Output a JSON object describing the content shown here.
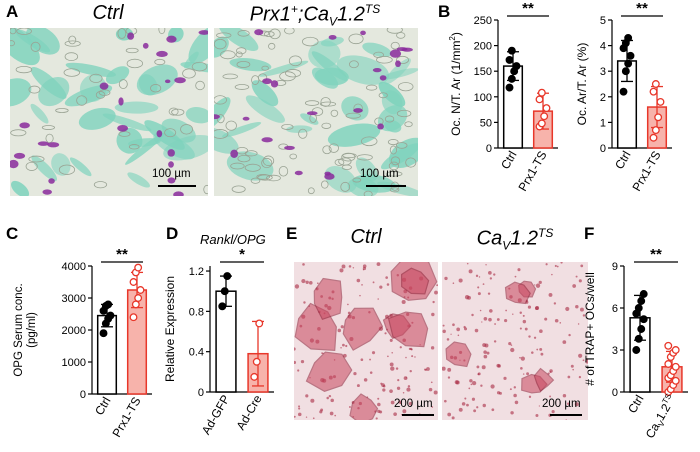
{
  "panels": {
    "A": {
      "letter": "A",
      "images": [
        {
          "title": "Ctrl",
          "scale_bar": "100 µm",
          "stain": "TRAP (purple) / fast green"
        },
        {
          "title_main": "Prx1",
          "title_sup": "+",
          "title_mid": ";Ca",
          "title_sub": "V",
          "title_end": "1.2",
          "title_sup2": "TS",
          "scale_bar": "100 µm"
        }
      ]
    },
    "B": {
      "letter": "B"
    },
    "C": {
      "letter": "C"
    },
    "D": {
      "letter": "D",
      "heading": "Rankl/OPG"
    },
    "E": {
      "letter": "E",
      "images": [
        {
          "title": "Ctrl",
          "scale_bar": "200 µm"
        },
        {
          "title_main": "Ca",
          "title_sub": "V",
          "title_end": "1.2",
          "title_sup": "TS",
          "scale_bar": "200 µm"
        }
      ]
    },
    "F": {
      "letter": "F"
    }
  },
  "colors": {
    "ctrl_fill": "#ffffff",
    "mutant_fill": "#f7b3ab",
    "mutant_edge": "#e8372a",
    "ctrl_edge": "#000000",
    "trap_purple": "#8a2a9c",
    "fast_green": "#7fd3bd",
    "osteoclast_red": "#c8475f"
  },
  "chart_data": [
    {
      "id": "B1",
      "type": "bar",
      "ylabel_main": "Oc. N/T. Ar (1/mm",
      "ylabel_sup": "2",
      "ylabel_end": ")",
      "categories": [
        "Ctrl",
        "Prx1-TS"
      ],
      "values": [
        160,
        72
      ],
      "errors": [
        28,
        35
      ],
      "points": [
        [
          118,
          135,
          150,
          160,
          172,
          190
        ],
        [
          42,
          48,
          62,
          78,
          95,
          108
        ]
      ],
      "ylim": [
        0,
        250
      ],
      "yticks": [
        0,
        50,
        100,
        150,
        200,
        250
      ],
      "significance": "**"
    },
    {
      "id": "B2",
      "type": "bar",
      "ylabel": "Oc. Ar/T. Ar (%)",
      "categories": [
        "Ctrl",
        "Prx1-TS"
      ],
      "values": [
        3.4,
        1.6
      ],
      "errors": [
        0.8,
        0.8
      ],
      "points": [
        [
          2.2,
          3.0,
          3.3,
          3.6,
          3.9,
          4.1,
          4.3
        ],
        [
          0.4,
          0.7,
          1.2,
          1.8,
          2.2,
          2.5
        ]
      ],
      "ylim": [
        0,
        5
      ],
      "yticks": [
        0,
        1,
        2,
        3,
        4,
        5
      ],
      "significance": "**"
    },
    {
      "id": "C",
      "type": "bar",
      "ylabel_lines": [
        "OPG Serum conc.",
        "(pg/ml)"
      ],
      "categories": [
        "Ctrl",
        "Prx1-TS"
      ],
      "values": [
        2450,
        3250
      ],
      "errors": [
        350,
        550
      ],
      "points": [
        [
          1900,
          2200,
          2350,
          2450,
          2600,
          2750,
          2800
        ],
        [
          2400,
          2800,
          3000,
          3250,
          3500,
          3800,
          3950
        ]
      ],
      "ylim": [
        0,
        4000
      ],
      "yticks": [
        0,
        1000,
        2000,
        3000,
        4000
      ],
      "significance": "**"
    },
    {
      "id": "D",
      "type": "bar",
      "ylabel": "Relative Expression",
      "categories": [
        "Ad-GFP",
        "Ad-Cre"
      ],
      "values": [
        1.0,
        0.38
      ],
      "errors": [
        0.15,
        0.32
      ],
      "points": [
        [
          0.85,
          1.0,
          1.15
        ],
        [
          0.15,
          0.3,
          0.68
        ]
      ],
      "ylim": [
        0,
        1.25
      ],
      "yticks": [
        0,
        0.4,
        0.8,
        1.2
      ],
      "ytick_labels": [
        "0",
        "0.4",
        "0.8",
        "1.2"
      ],
      "significance": "*"
    },
    {
      "id": "F",
      "type": "bar",
      "ylabel": "# of TRAP+ OCs/well",
      "categories": [
        "Ctrl",
        "CaV1.2TS"
      ],
      "category_label_parts": [
        {
          "main": "Ctrl"
        },
        {
          "main": "Ca",
          "sub": "V",
          "end": "1.2",
          "sup": "TS"
        }
      ],
      "values": [
        5.3,
        1.8
      ],
      "errors": [
        1.6,
        1.1
      ],
      "points": [
        [
          3.0,
          3.8,
          4.5,
          5.2,
          5.6,
          6.0,
          6.5,
          7.0
        ],
        [
          0.0,
          0.2,
          0.5,
          0.8,
          1.0,
          1.2,
          1.5,
          1.8,
          2.0,
          2.5,
          2.8,
          3.0,
          3.3
        ]
      ],
      "ylim": [
        0,
        9
      ],
      "yticks": [
        0,
        3,
        6,
        9
      ],
      "significance": "**"
    }
  ]
}
